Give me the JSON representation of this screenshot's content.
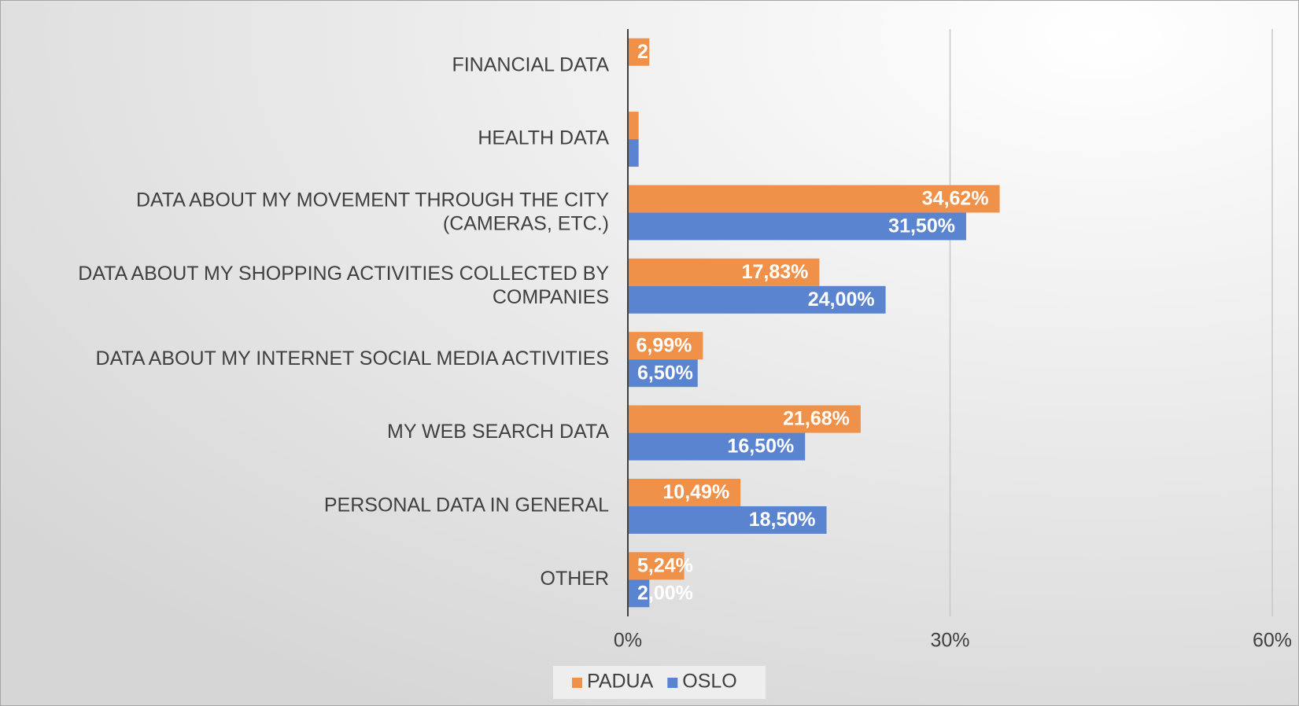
{
  "chart_data": {
    "type": "hbar",
    "categories": [
      "FINANCIAL DATA",
      "HEALTH DATA",
      "DATA ABOUT MY MOVEMENT THROUGH THE CITY\n(CAMERAS, ETC.)",
      "DATA ABOUT MY SHOPPING ACTIVITIES COLLECTED BY\nCOMPANIES",
      "DATA ABOUT MY INTERNET SOCIAL MEDIA ACTIVITIES",
      "MY WEB SEARCH DATA",
      "PERSONAL DATA IN GENERAL",
      "OTHER"
    ],
    "series": [
      {
        "name": "PADUA",
        "color": "#f0914a",
        "values": [
          2,
          1,
          34.62,
          17.83,
          6.99,
          21.68,
          10.49,
          5.24
        ],
        "value_labels": [
          "2",
          null,
          "34,62%",
          "17,83%",
          "6,99%",
          "21,68%",
          "10,49%",
          "5,24%"
        ]
      },
      {
        "name": "OSLO",
        "color": "#5b84d0",
        "values": [
          null,
          1,
          31.5,
          24,
          6.5,
          16.5,
          18.5,
          2
        ],
        "value_labels": [
          null,
          null,
          "31,50%",
          "24,00%",
          "6,50%",
          "16,50%",
          "18,50%",
          "2,00%"
        ]
      }
    ],
    "xlim": [
      0,
      60
    ],
    "xticks": [
      {
        "value": 0,
        "label": "0%"
      },
      {
        "value": 30,
        "label": "30%"
      },
      {
        "value": 60,
        "label": "60%"
      }
    ],
    "grid": true,
    "legend": "bottom"
  }
}
